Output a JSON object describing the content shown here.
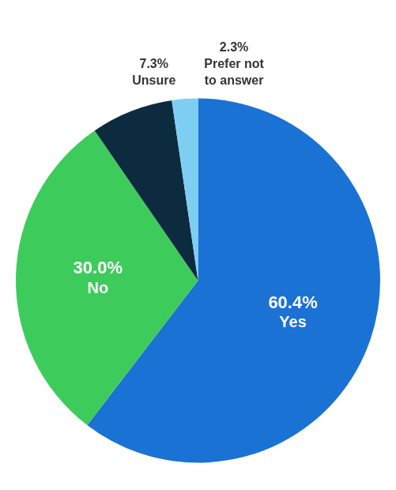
{
  "chart_data": {
    "type": "pie",
    "categories": [
      "Yes",
      "No",
      "Unsure",
      "Prefer not\nto answer"
    ],
    "values": [
      60.4,
      30.0,
      7.3,
      2.3
    ],
    "value_labels": [
      "60.4%",
      "30.0%",
      "7.3%",
      "2.3%"
    ],
    "colors": [
      "#1a72d4",
      "#3dcc5c",
      "#0d2b3e",
      "#7ecef4"
    ],
    "data_labels": true
  }
}
